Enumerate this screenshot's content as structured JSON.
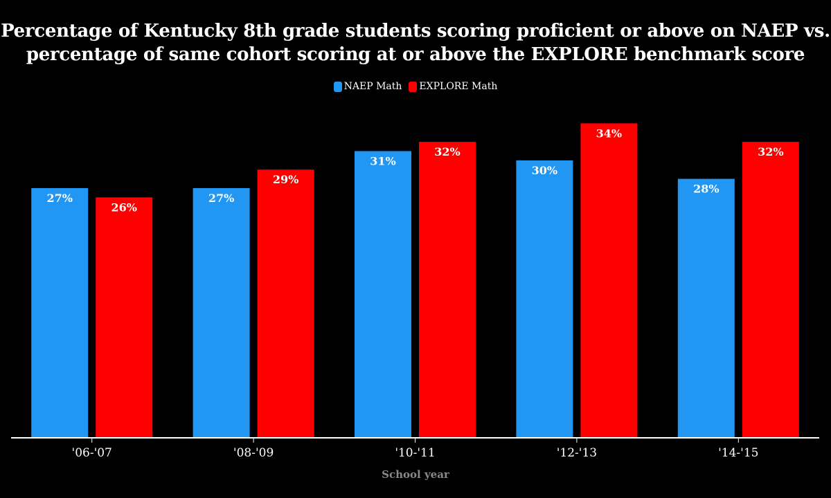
{
  "chart_data": {
    "type": "bar",
    "title": "Percentage of Kentucky 8th grade students scoring proficient or above on NAEP vs. percentage of same cohort scoring at or above the EXPLORE benchmark score",
    "title_lines": [
      "Percentage of Kentucky 8th grade students scoring proficient or above on NAEP vs.",
      "percentage of same cohort scoring at or above the EXPLORE benchmark score"
    ],
    "xlabel": "School year",
    "ylabel": "",
    "categories": [
      "'06-'07",
      "'08-'09",
      "'10-'11",
      "'12-'13",
      "'14-'15"
    ],
    "series": [
      {
        "name": "NAEP Math",
        "color": "#2196f3",
        "values": [
          27,
          27,
          31,
          30,
          28
        ],
        "labels": [
          "27%",
          "27%",
          "31%",
          "30%",
          "28%"
        ]
      },
      {
        "name": "EXPLORE Math",
        "color": "#ff0000",
        "values": [
          26,
          29,
          32,
          34,
          32
        ],
        "labels": [
          "26%",
          "29%",
          "32%",
          "34%",
          "32%"
        ]
      }
    ],
    "ylim": [
      0,
      34.4
    ],
    "grid": false,
    "legend": "top-center",
    "data_labels": "inside-top"
  }
}
